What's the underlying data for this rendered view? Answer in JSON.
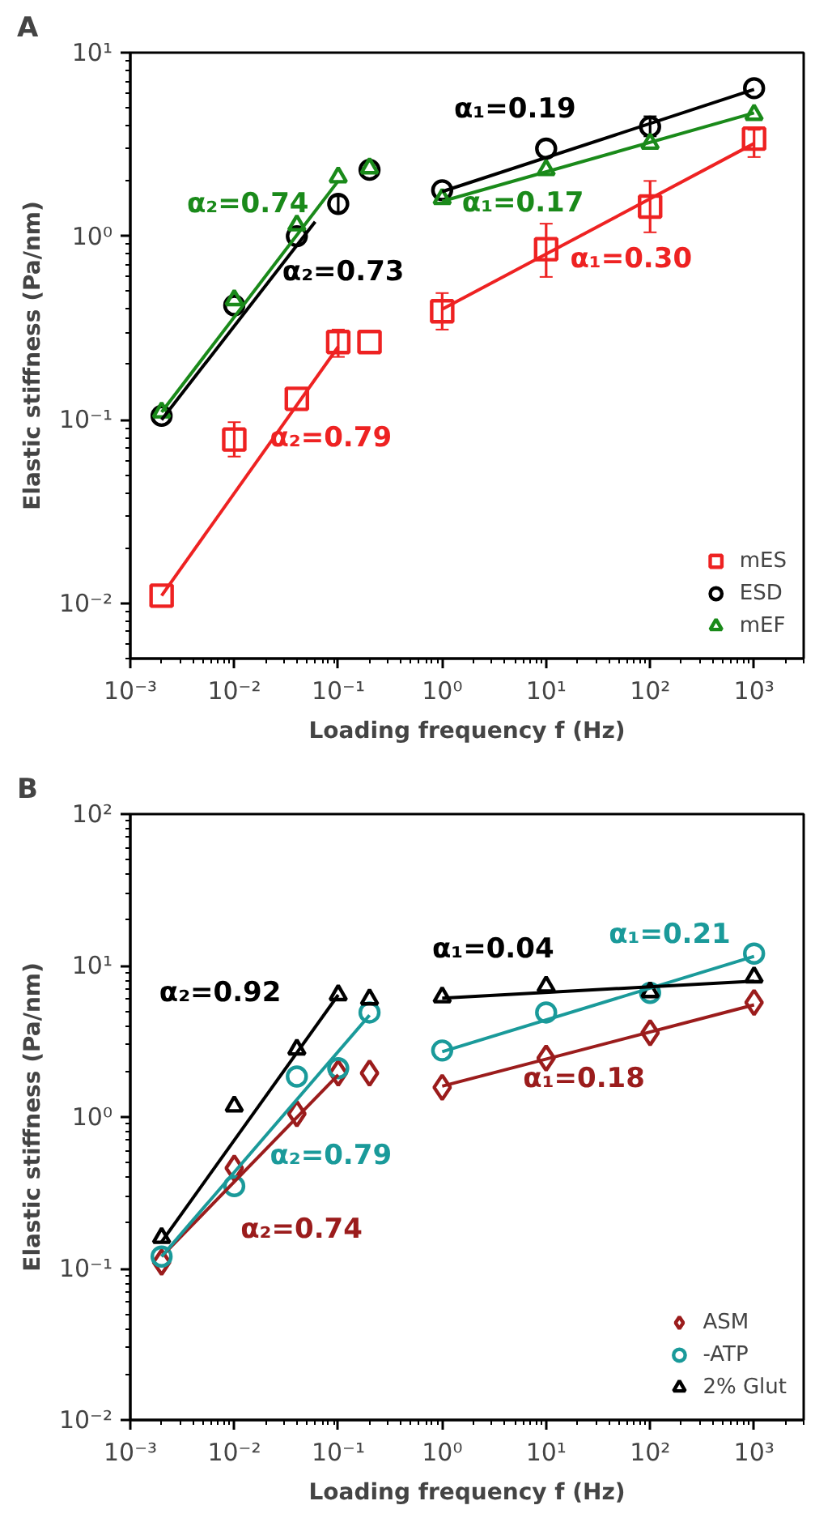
{
  "chart_data": [
    {
      "type": "scatter",
      "title": "A",
      "xlabel": "Loading frequency f (Hz)",
      "ylabel": "Elastic stiffness (Pa/nm)",
      "log": "xy",
      "grid": false,
      "legend": "bottom right",
      "xlim": [
        0.001,
        3000
      ],
      "ylim": [
        0.005,
        10
      ],
      "xticks": [
        {
          "value": 0.001,
          "label": "10⁻³"
        },
        {
          "value": 0.01,
          "label": "10⁻²"
        },
        {
          "value": 0.1,
          "label": "10⁻¹"
        },
        {
          "value": 1,
          "label": "10⁰"
        },
        {
          "value": 10,
          "label": "10¹"
        },
        {
          "value": 100,
          "label": "10²"
        },
        {
          "value": 1000,
          "label": "10³"
        }
      ],
      "yticks": [
        {
          "value": 0.01,
          "label": "10⁻²"
        },
        {
          "value": 0.1,
          "label": "10⁻¹"
        },
        {
          "value": 1,
          "label": "10⁰"
        },
        {
          "value": 10,
          "label": "10¹"
        }
      ],
      "x": [
        0.002,
        0.01,
        0.04,
        0.1,
        0.2,
        1,
        10,
        100,
        1000
      ],
      "series": [
        {
          "name": "mES",
          "color": "#ee2222",
          "marker": "square",
          "values": [
            0.011,
            0.078,
            0.13,
            0.265,
            0.265,
            0.39,
            0.85,
            1.45,
            3.4
          ],
          "errors": [
            null,
            [
              0.063,
              0.097
            ],
            null,
            [
              0.22,
              0.31
            ],
            null,
            [
              0.31,
              0.49
            ],
            [
              0.6,
              1.17
            ],
            [
              1.05,
              2.0
            ],
            [
              2.7,
              3.8
            ]
          ]
        },
        {
          "name": "ESD",
          "color": "#000000",
          "marker": "circle",
          "values": [
            0.105,
            0.42,
            1.0,
            1.5,
            2.3,
            1.78,
            3.0,
            3.95,
            6.4
          ],
          "errors": [
            null,
            null,
            null,
            [
              1.35,
              1.65
            ],
            null,
            null,
            null,
            [
              3.5,
              4.5
            ],
            null
          ]
        },
        {
          "name": "mEF",
          "color": "#1a8a1a",
          "marker": "triangle",
          "values": [
            0.11,
            0.45,
            1.15,
            2.1,
            2.35,
            1.6,
            2.3,
            3.2,
            4.6
          ]
        },
        {
          "type": "line",
          "name": "α₂=0.79",
          "color": "#ee2222",
          "x": [
            0.002,
            0.1
          ],
          "values": [
            0.011,
            0.25
          ]
        },
        {
          "type": "line",
          "name": "α₁=0.30",
          "color": "#ee2222",
          "x": [
            1,
            1000
          ],
          "values": [
            0.4,
            3.2
          ]
        },
        {
          "type": "line",
          "name": "α₂=0.73",
          "color": "#000000",
          "x": [
            0.002,
            0.06
          ],
          "values": [
            0.1,
            1.2
          ]
        },
        {
          "type": "line",
          "name": "α₁=0.19",
          "color": "#000000",
          "x": [
            1,
            1000
          ],
          "values": [
            1.75,
            6.3
          ]
        },
        {
          "type": "line",
          "name": "α₂=0.74",
          "color": "#1a8a1a",
          "x": [
            0.002,
            0.1
          ],
          "values": [
            0.11,
            2.0
          ]
        },
        {
          "type": "line",
          "name": "α₁=0.17",
          "color": "#1a8a1a",
          "x": [
            1,
            1000
          ],
          "values": [
            1.55,
            4.7
          ]
        }
      ]
    },
    {
      "type": "scatter",
      "title": "B",
      "xlabel": "Loading frequency f (Hz)",
      "ylabel": "Elastic stiffness (Pa/nm)",
      "log": "xy",
      "grid": false,
      "legend": "bottom right",
      "xlim": [
        0.001,
        3000
      ],
      "ylim": [
        0.01,
        100
      ],
      "xticks": [
        {
          "value": 0.001,
          "label": "10⁻³"
        },
        {
          "value": 0.01,
          "label": "10⁻²"
        },
        {
          "value": 0.1,
          "label": "10⁻¹"
        },
        {
          "value": 1,
          "label": "10⁰"
        },
        {
          "value": 10,
          "label": "10¹"
        },
        {
          "value": 100,
          "label": "10²"
        },
        {
          "value": 1000,
          "label": "10³"
        }
      ],
      "yticks": [
        {
          "value": 0.01,
          "label": "10⁻²"
        },
        {
          "value": 0.1,
          "label": "10⁻¹"
        },
        {
          "value": 1,
          "label": "10⁰"
        },
        {
          "value": 10,
          "label": "10¹"
        },
        {
          "value": 100,
          "label": "10²"
        }
      ],
      "x": [
        0.002,
        0.01,
        0.04,
        0.1,
        0.2,
        1,
        10,
        100,
        1000
      ],
      "series": [
        {
          "name": "ASM",
          "color": "#9b1c1c",
          "marker": "diamond",
          "values": [
            0.11,
            0.46,
            1.05,
            1.95,
            1.95,
            1.57,
            2.45,
            3.6,
            5.7
          ]
        },
        {
          "name": "-ATP",
          "color": "#1a9a9a",
          "marker": "circle",
          "values": [
            0.12,
            0.35,
            1.85,
            2.1,
            4.9,
            2.75,
            4.9,
            6.6,
            12
          ]
        },
        {
          "name": "2% Glut",
          "color": "#000000",
          "marker": "triangle",
          "values": [
            0.16,
            1.18,
            2.8,
            6.4,
            6.0,
            6.2,
            7.3,
            6.7,
            8.4
          ]
        },
        {
          "type": "line",
          "name": "α₂=0.74",
          "color": "#9b1c1c",
          "x": [
            0.002,
            0.1
          ],
          "values": [
            0.12,
            1.9
          ]
        },
        {
          "type": "line",
          "name": "α₁=0.18",
          "color": "#9b1c1c",
          "x": [
            1,
            1000
          ],
          "values": [
            1.6,
            5.5
          ]
        },
        {
          "type": "line",
          "name": "α₂=0.79",
          "color": "#1a9a9a",
          "x": [
            0.002,
            0.2
          ],
          "values": [
            0.12,
            4.7
          ]
        },
        {
          "type": "line",
          "name": "α₁=0.21",
          "color": "#1a9a9a",
          "x": [
            1,
            1000
          ],
          "values": [
            2.7,
            11.5
          ]
        },
        {
          "type": "line",
          "name": "α₂=0.92",
          "color": "#000000",
          "x": [
            0.002,
            0.1
          ],
          "values": [
            0.15,
            6.4
          ]
        },
        {
          "type": "line",
          "name": "α₁=0.04",
          "color": "#000000",
          "x": [
            1,
            1000
          ],
          "values": [
            6.1,
            7.9
          ]
        }
      ]
    }
  ]
}
